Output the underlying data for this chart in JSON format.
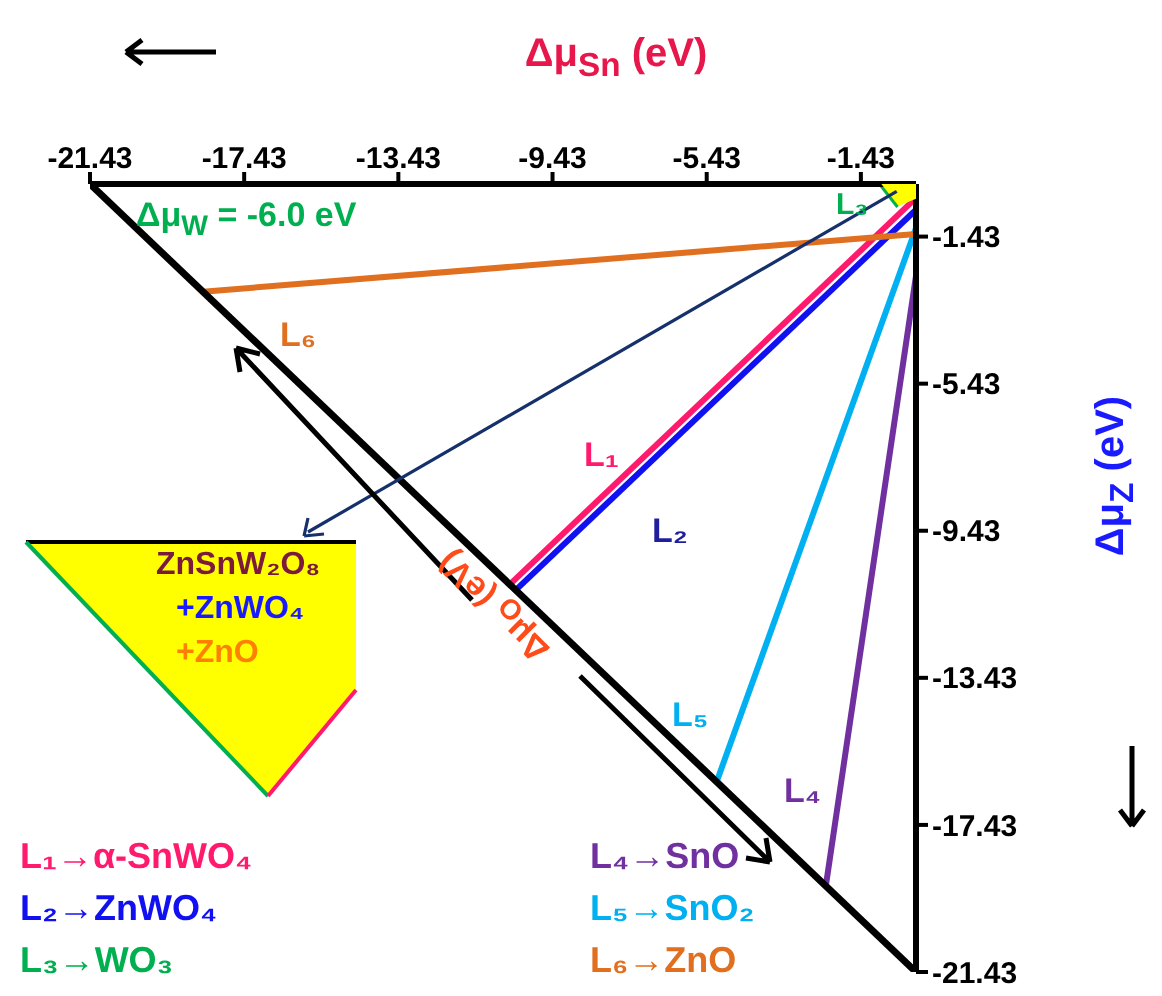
{
  "chart_data": {
    "type": "line",
    "xlabel": "Δμ$_{Sn}$ (eV)",
    "ylabel": "Δμ$_{Z}$ (eV)",
    "xlim": [
      -21.43,
      0
    ],
    "xticks": [
      -21.43,
      -17.43,
      -13.43,
      -9.43,
      -5.43,
      -1.43
    ],
    "ylim": [
      -21.43,
      0
    ],
    "yticks": [
      -1.43,
      -5.43,
      -9.43,
      -13.43,
      -17.43,
      -21.43
    ],
    "series": [
      {
        "name": "L₁→α-SnWO₄",
        "color": "#ff1a6e",
        "x": [
          0,
          -10.53
        ],
        "values": [
          -0.38,
          -10.88
        ]
      },
      {
        "name": "L₂→ZnWO₄",
        "color": "#1010f0",
        "x": [
          0,
          -10.38
        ],
        "values": [
          -0.7,
          -11.04
        ]
      },
      {
        "name": "L₃→WO₃",
        "color": "#00b050",
        "x": [
          -0.9,
          -0.45
        ],
        "values": [
          0,
          -0.6
        ]
      },
      {
        "name": "L₄→SnO",
        "color": "#7030a0",
        "x": [
          0,
          -2.34
        ],
        "values": [
          -2.5,
          -19.09
        ]
      },
      {
        "name": "L₅→SnO₂",
        "color": "#00b0f0",
        "x": [
          0,
          -5.19
        ],
        "values": [
          -1.2,
          -16.31
        ]
      },
      {
        "name": "L₆→ZnO",
        "color": "#e07020",
        "x": [
          0,
          -18.5
        ],
        "values": [
          -1.36,
          -2.93
        ]
      },
      {
        "color": "#000000",
        "x": [
          -21.43,
          0
        ],
        "values": [
          0,
          -21.43
        ]
      }
    ],
    "legend": "bottom left",
    "annotations": [
      "L₁",
      "L₂",
      "L₃",
      "L₄",
      "L₅",
      "L₆",
      "Δμ$_{W}$ = -6.0 eV",
      "Δμ$_{O}$ (eV)",
      "ZnSnW₂O₈",
      "+ZnWO₄",
      "+ZnO"
    ]
  }
}
